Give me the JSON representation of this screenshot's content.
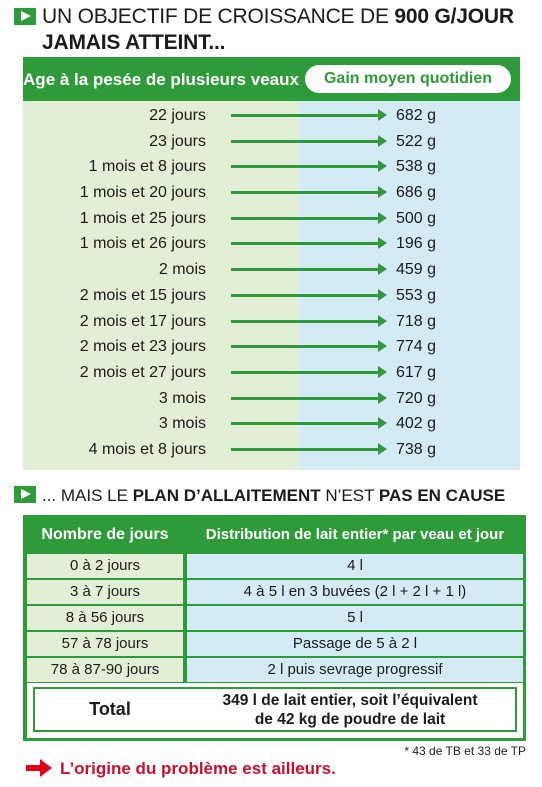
{
  "heading1": {
    "part1": "UN OBJECTIF DE CROISSANCE DE ",
    "bold1": "900 G/JOUR",
    "line2": "JAMAIS ATTEINT..."
  },
  "table1": {
    "header_left": "Age à la pesée de plusieurs veaux",
    "header_right": "Gain moyen quotidien",
    "rows": [
      {
        "age": "22 jours",
        "gain": "682 g"
      },
      {
        "age": "23 jours",
        "gain": "522 g"
      },
      {
        "age": "1 mois et 8 jours",
        "gain": "538 g"
      },
      {
        "age": "1 mois et 20 jours",
        "gain": "686 g"
      },
      {
        "age": "1 mois et 25 jours",
        "gain": "500 g"
      },
      {
        "age": "1 mois et 26 jours",
        "gain": "196 g"
      },
      {
        "age": "2 mois",
        "gain": "459 g"
      },
      {
        "age": "2 mois et 15 jours",
        "gain": "553 g"
      },
      {
        "age": "2 mois et 17 jours",
        "gain": "718 g"
      },
      {
        "age": "2 mois et 23 jours",
        "gain": "774 g"
      },
      {
        "age": "2 mois et 27 jours",
        "gain": "617 g"
      },
      {
        "age": "3 mois",
        "gain": "720 g"
      },
      {
        "age": "3 mois",
        "gain": "402 g"
      },
      {
        "age": "4 mois et 8 jours",
        "gain": "738 g"
      }
    ]
  },
  "heading2": {
    "p1": "... MAIS LE ",
    "b1": "PLAN D’ALLAITEMENT",
    "p2": " N’EST ",
    "b2": "PAS EN CAUSE"
  },
  "table2": {
    "header_left": "Nombre de jours",
    "header_right": "Distribution de lait entier* par veau et jour",
    "rows": [
      {
        "days": "0 à 2 jours",
        "distribution": "4 l"
      },
      {
        "days": "3 à 7 jours",
        "distribution": "4 à 5 l en 3 buvées (2 l + 2 l + 1 l)"
      },
      {
        "days": "8 à 56 jours",
        "distribution": "5 l"
      },
      {
        "days": "57 à 78 jours",
        "distribution": "Passage de 5 à 2 l"
      },
      {
        "days": "78 à 87-90 jours",
        "distribution": "2 l puis sevrage progressif"
      }
    ],
    "total_label": "Total",
    "total_line1": "349 l de lait entier, soit l’équivalent",
    "total_line2": "de 42 kg de poudre de lait"
  },
  "footnote": "* 43 de TB et 33 de TP",
  "conclusion": "L’origine du problème est ailleurs.",
  "colors": {
    "green": "#2f9a3a",
    "light_green": "#e3eed6",
    "light_blue": "#d4ebf6",
    "red": "#e2001a"
  }
}
